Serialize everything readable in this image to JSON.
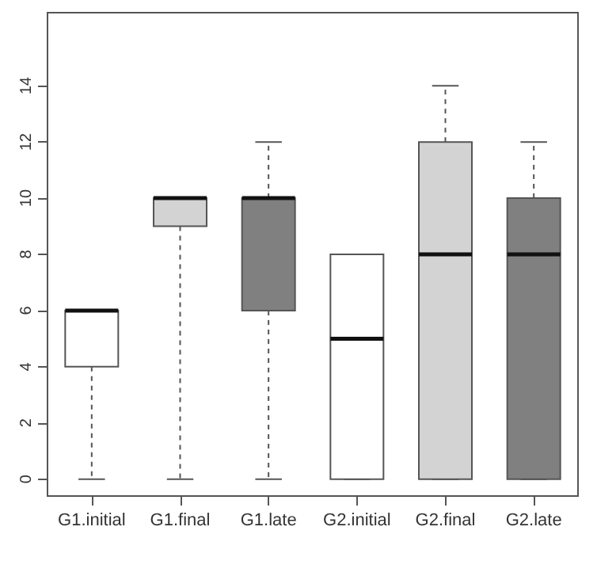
{
  "chart_data": {
    "type": "box",
    "categories": [
      "G1.initial",
      "G1.final",
      "G1.late",
      "G2.initial",
      "G2.final",
      "G2.late"
    ],
    "boxes": [
      {
        "low": 0,
        "q1": 4,
        "median": 6,
        "q3": 6,
        "high": 6
      },
      {
        "low": 0,
        "q1": 9,
        "median": 10,
        "q3": 10,
        "high": 10
      },
      {
        "low": 0,
        "q1": 6,
        "median": 10,
        "q3": 10,
        "high": 12
      },
      {
        "low": 0,
        "q1": 0,
        "median": 5,
        "q3": 8,
        "high": 8
      },
      {
        "low": 0,
        "q1": 0,
        "median": 8,
        "q3": 12,
        "high": 14
      },
      {
        "low": 0,
        "q1": 0,
        "median": 8,
        "q3": 10,
        "high": 12
      }
    ],
    "colors": [
      "#ffffff",
      "#d3d3d3",
      "#808080",
      "#ffffff",
      "#d3d3d3",
      "#808080"
    ],
    "ylim": [
      -0.6,
      16.6
    ],
    "yticks": [
      0,
      2,
      4,
      6,
      8,
      10,
      12,
      14
    ],
    "grid": false
  }
}
